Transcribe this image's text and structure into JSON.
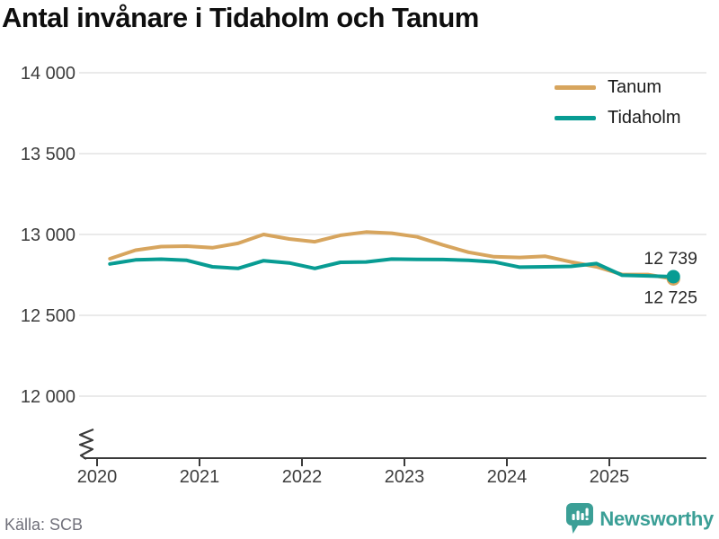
{
  "title": "Antal invånare i Tidaholm och Tanum",
  "source": "Källa: SCB",
  "brand": {
    "name": "Newsworthy",
    "color": "#3b9f96",
    "icon": "newsworthy-speech-bubble-chart-icon"
  },
  "colors": {
    "tanum": "#d7a55e",
    "tidaholm": "#089c93",
    "grid": "#e3e3e3",
    "axis": "#3a3a3a",
    "tick_text": "#3d3d3d",
    "end_label_text": "#2a2a2a"
  },
  "chart_data": {
    "type": "line",
    "title": "Antal invånare i Tidaholm och Tanum",
    "xlabel": "",
    "ylabel": "",
    "grid": "horizontal",
    "legend_position": "top-right",
    "axis_break": true,
    "x_ticks": [
      2020,
      2021,
      2022,
      2023,
      2024,
      2025
    ],
    "yticks": [
      12000,
      12500,
      13000,
      13500,
      14000
    ],
    "ytick_labels": [
      "12 000",
      "12 500",
      "13 000",
      "13 500",
      "14 000"
    ],
    "ylim": [
      12000,
      14000
    ],
    "periods": [
      "2020-Q1",
      "2020-Q2",
      "2020-Q3",
      "2020-Q4",
      "2021-Q1",
      "2021-Q2",
      "2021-Q3",
      "2021-Q4",
      "2022-Q1",
      "2022-Q2",
      "2022-Q3",
      "2022-Q4",
      "2023-Q1",
      "2023-Q2",
      "2023-Q3",
      "2023-Q4",
      "2024-Q1",
      "2024-Q2",
      "2024-Q3",
      "2024-Q4",
      "2025-Q1",
      "2025-Q2",
      "2025-Q3"
    ],
    "series": [
      {
        "name": "Tanum",
        "color": "#d7a55e",
        "end_label": "12 725",
        "end_value": 12725,
        "values": [
          12850,
          12903,
          12925,
          12928,
          12918,
          12945,
          13000,
          12972,
          12955,
          12995,
          13015,
          13008,
          12985,
          12935,
          12890,
          12862,
          12858,
          12865,
          12830,
          12800,
          12752,
          12752,
          12725
        ]
      },
      {
        "name": "Tidaholm",
        "color": "#089c93",
        "end_label": "12 739",
        "end_value": 12739,
        "values": [
          12818,
          12843,
          12847,
          12840,
          12800,
          12790,
          12838,
          12824,
          12790,
          12828,
          12830,
          12848,
          12846,
          12845,
          12840,
          12830,
          12798,
          12800,
          12803,
          12820,
          12748,
          12744,
          12739
        ]
      }
    ]
  }
}
